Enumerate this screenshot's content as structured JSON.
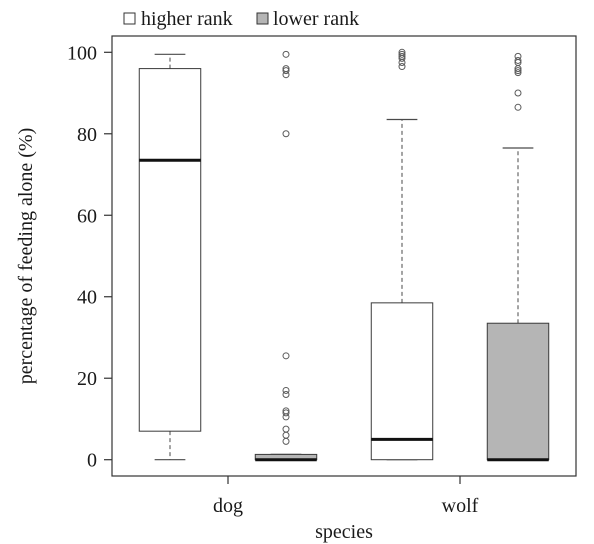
{
  "chart_data": {
    "type": "boxplot",
    "xlabel": "species",
    "ylabel": "percentage of feeding alone (%)",
    "ylim": [
      -4,
      104
    ],
    "yticks": [
      0,
      20,
      40,
      60,
      80,
      100
    ],
    "categories": [
      "dog",
      "wolf"
    ],
    "legend": {
      "placement": "top-left",
      "entries": [
        {
          "label": "higher rank",
          "color": "#ffffff"
        },
        {
          "label": "lower rank",
          "color": "#b5b5b5"
        }
      ]
    },
    "series": [
      {
        "name": "higher rank",
        "color": "#ffffff",
        "boxes": [
          {
            "category": "dog",
            "whisker_low": 0,
            "q1": 7,
            "median": 73.5,
            "q3": 96,
            "whisker_high": 99.5,
            "outliers": []
          },
          {
            "category": "wolf",
            "whisker_low": 0,
            "q1": 0,
            "median": 5,
            "q3": 38.5,
            "whisker_high": 83.5,
            "outliers": [
              96.5,
              97.5,
              98.5,
              99,
              99.5,
              100
            ]
          }
        ]
      },
      {
        "name": "lower rank",
        "color": "#b5b5b5",
        "boxes": [
          {
            "category": "dog",
            "whisker_low": 0,
            "q1": 0,
            "median": 0,
            "q3": 1.3,
            "whisker_high": 1.3,
            "outliers": [
              4.5,
              6,
              7.5,
              10.5,
              11.5,
              12,
              16,
              17,
              25.5,
              80,
              94.5,
              95.5,
              96,
              99.5
            ]
          },
          {
            "category": "wolf",
            "whisker_low": 0,
            "q1": 0,
            "median": 0,
            "q3": 33.5,
            "whisker_high": 76.5,
            "outliers": [
              86.5,
              90,
              95,
              95.5,
              96,
              97.5,
              98,
              99
            ]
          }
        ]
      }
    ]
  }
}
